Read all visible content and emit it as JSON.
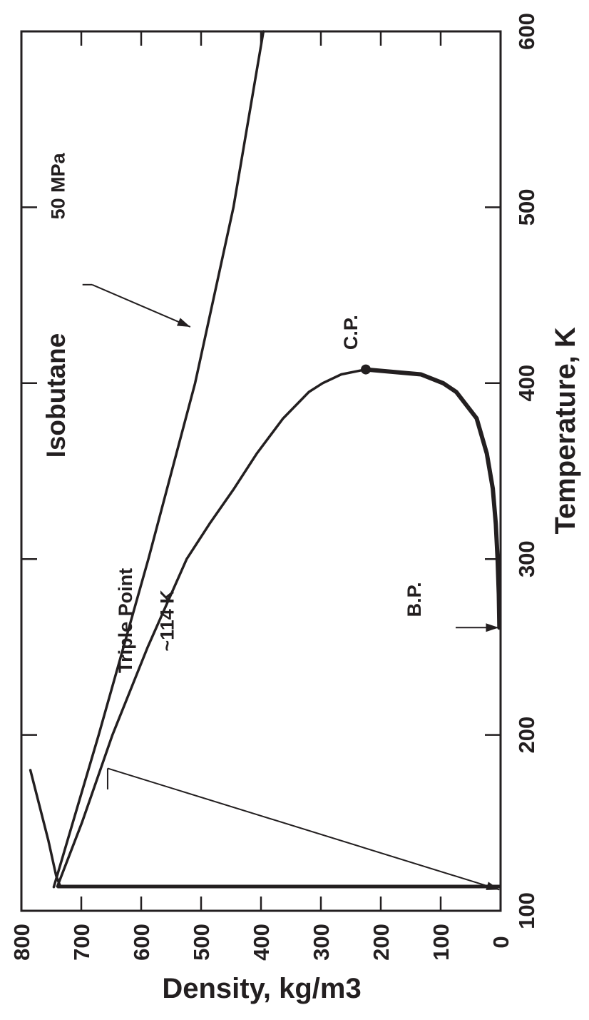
{
  "chart_data": {
    "type": "line",
    "title": "Isobutane",
    "xlabel": "Temperature, K",
    "ylabel": "Density, kg/m3",
    "xlim": [
      100,
      600
    ],
    "ylim": [
      0,
      800
    ],
    "x_ticks": [
      "100",
      "200",
      "300",
      "400",
      "500",
      "600"
    ],
    "y_ticks": [
      "0",
      "100",
      "200",
      "300",
      "400",
      "500",
      "600",
      "700",
      "800"
    ],
    "grid": false,
    "series": [
      {
        "name": "50 MPa",
        "x": [
          113.5,
          200,
          300,
          400,
          500,
          600
        ],
        "y": [
          746,
          671,
          588,
          510,
          446,
          396
        ]
      },
      {
        "name": "",
        "x": [
          113.8,
          120,
          140,
          180
        ],
        "y": [
          735,
          742,
          755,
          785
        ]
      },
      {
        "name": "",
        "x": [
          113.8,
          150,
          200,
          250,
          300,
          320,
          340,
          360,
          380,
          395,
          400,
          405,
          407.8
        ],
        "y": [
          740,
          699,
          648,
          589,
          524,
          486,
          445,
          407,
          363,
          320,
          297,
          266,
          225
        ]
      },
      {
        "name": "",
        "x": [
          261,
          280,
          300,
          320,
          340,
          360,
          380,
          395,
          400,
          405,
          407.8
        ],
        "y": [
          2,
          3,
          5,
          8,
          13,
          23,
          40,
          74,
          96,
          133,
          225
        ]
      }
    ],
    "vertical_line": {
      "x": 113.8,
      "y": [
        0,
        740
      ]
    },
    "points": [
      {
        "label": "C.P.",
        "x": 407.8,
        "y": 225
      }
    ],
    "annotations": [
      {
        "text": "50 MPa",
        "x": 432,
        "y": 518
      },
      {
        "text": "Triple Point",
        "x": 114,
        "y": 0
      },
      {
        "text": "~114 K",
        "x": 114,
        "y": 0
      },
      {
        "text": "B.P.",
        "x": 261,
        "y": 0
      }
    ]
  }
}
